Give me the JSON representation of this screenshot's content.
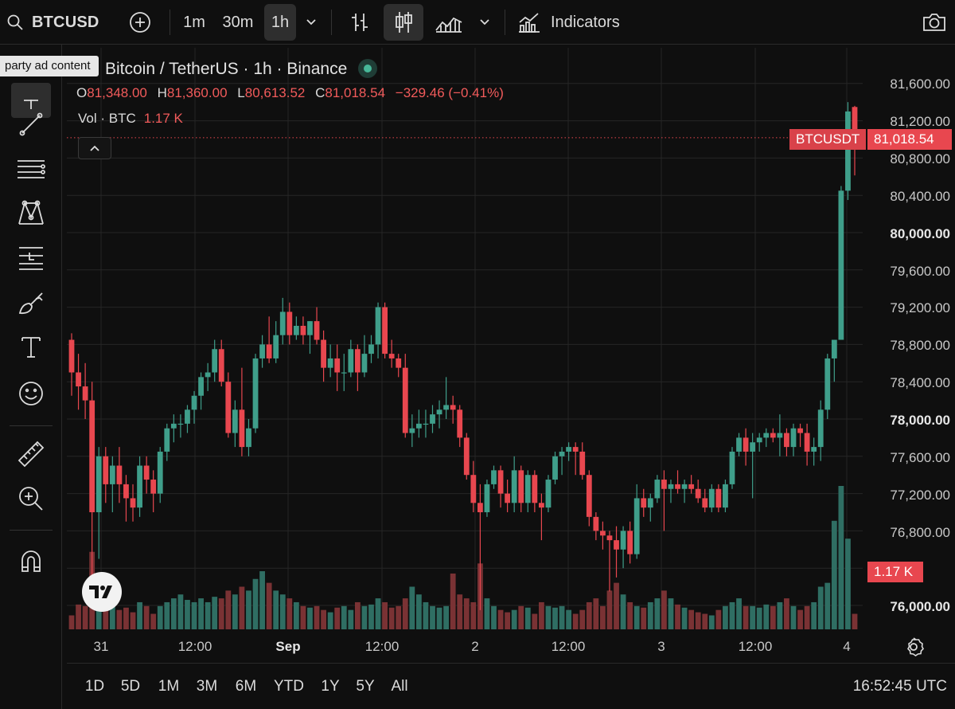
{
  "toolbar": {
    "symbol": "BTCUSD",
    "timeframes": [
      "1m",
      "30m",
      "1h"
    ],
    "active_timeframe": "1h",
    "indicators_label": "Indicators"
  },
  "tooltip": "party ad content",
  "legend": {
    "title": "Bitcoin / TetherUS · 1h · Binance",
    "ohlc": [
      {
        "key": "O",
        "value": "81,348.00"
      },
      {
        "key": "H",
        "value": "81,360.00"
      },
      {
        "key": "L",
        "value": "80,613.52"
      },
      {
        "key": "C",
        "value": "81,018.54"
      }
    ],
    "change": "−329.46 (−0.41%)",
    "vol_label": "Vol · BTC",
    "vol_value": "1.17 K"
  },
  "price_scale": {
    "labels": [
      "81,600.00",
      "81,200.00",
      "80,800.00",
      "80,400.00",
      "80,000.00",
      "79,600.00",
      "79,200.00",
      "78,800.00",
      "78,400.00",
      "78,000.00",
      "77,600.00",
      "77,200.00",
      "76,800.00",
      "76,000.00"
    ],
    "bold": [
      "80,000.00",
      "78,000.00",
      "76,000.00"
    ],
    "last_price_symbol": "BTCUSDT",
    "last_price": "81,018.54",
    "volume_tag": "1.17 K"
  },
  "time_scale": {
    "labels": [
      "31",
      "12:00",
      "Sep",
      "12:00",
      "2",
      "12:00",
      "3",
      "12:00",
      "4"
    ],
    "bold": [
      "Sep"
    ]
  },
  "bottombar": {
    "ranges": [
      "1D",
      "5D",
      "1M",
      "3M",
      "6M",
      "YTD",
      "1Y",
      "5Y",
      "All"
    ],
    "clock": "16:52:45 UTC"
  },
  "colors": {
    "up": "#3f9e8a",
    "down": "#e8474f",
    "volume_up": "#2f6e63",
    "volume_down": "#7a3234"
  },
  "chart_data": {
    "type": "candlestick",
    "interval": "1h",
    "price_range": [
      75900,
      81700
    ],
    "candles": [
      [
        78850,
        78920,
        78250,
        78500
      ],
      [
        78500,
        78700,
        78100,
        78350
      ],
      [
        78350,
        78600,
        78000,
        78200
      ],
      [
        78200,
        78400,
        76300,
        77000
      ],
      [
        77000,
        77700,
        76500,
        77600
      ],
      [
        77600,
        77700,
        77100,
        77300
      ],
      [
        77300,
        77600,
        77000,
        77500
      ],
      [
        77500,
        77700,
        77100,
        77300
      ],
      [
        77300,
        77400,
        76900,
        77150
      ],
      [
        77150,
        77300,
        76900,
        77050
      ],
      [
        77050,
        77600,
        76950,
        77500
      ],
      [
        77500,
        77600,
        77200,
        77350
      ],
      [
        77350,
        77450,
        77000,
        77200
      ],
      [
        77200,
        77700,
        77100,
        77650
      ],
      [
        77650,
        77950,
        77550,
        77900
      ],
      [
        77900,
        78050,
        77750,
        77950
      ],
      [
        77950,
        78050,
        77800,
        77950
      ],
      [
        77950,
        78150,
        77850,
        78100
      ],
      [
        78100,
        78300,
        77950,
        78250
      ],
      [
        78250,
        78500,
        78100,
        78450
      ],
      [
        78450,
        78600,
        78300,
        78500
      ],
      [
        78500,
        78850,
        78400,
        78750
      ],
      [
        78750,
        78850,
        78350,
        78400
      ],
      [
        78400,
        78500,
        77800,
        77850
      ],
      [
        77850,
        78200,
        77700,
        78100
      ],
      [
        78100,
        78550,
        77600,
        77700
      ],
      [
        77700,
        78000,
        77600,
        77900
      ],
      [
        77900,
        78700,
        77850,
        78650
      ],
      [
        78650,
        78900,
        78550,
        78800
      ],
      [
        78800,
        79100,
        78600,
        78650
      ],
      [
        78650,
        79050,
        78600,
        78900
      ],
      [
        78900,
        79300,
        78800,
        79150
      ],
      [
        79150,
        79250,
        78800,
        78900
      ],
      [
        78900,
        79100,
        78850,
        79000
      ],
      [
        79000,
        79100,
        78800,
        78900
      ],
      [
        78900,
        79050,
        78700,
        79050
      ],
      [
        79050,
        79200,
        78800,
        78850
      ],
      [
        78850,
        78950,
        78400,
        78550
      ],
      [
        78550,
        78800,
        78450,
        78650
      ],
      [
        78650,
        78800,
        78300,
        78500
      ],
      [
        78500,
        78700,
        78300,
        78500
      ],
      [
        78500,
        78850,
        78450,
        78750
      ],
      [
        78750,
        78800,
        78300,
        78500
      ],
      [
        78500,
        78900,
        78450,
        78700
      ],
      [
        78700,
        78900,
        78600,
        78800
      ],
      [
        78800,
        79250,
        78650,
        79200
      ],
      [
        79200,
        79250,
        78650,
        78700
      ],
      [
        78700,
        78850,
        78550,
        78650
      ],
      [
        78650,
        78700,
        78450,
        78550
      ],
      [
        78550,
        78700,
        77800,
        77850
      ],
      [
        77850,
        78050,
        77700,
        77900
      ],
      [
        77900,
        78100,
        77800,
        77950
      ],
      [
        77950,
        78100,
        77800,
        77950
      ],
      [
        77950,
        78150,
        77850,
        78050
      ],
      [
        78050,
        78200,
        77900,
        78100
      ],
      [
        78100,
        78450,
        78000,
        78150
      ],
      [
        78150,
        78250,
        77950,
        78100
      ],
      [
        78100,
        78150,
        77700,
        77800
      ],
      [
        77800,
        77850,
        77350,
        77400
      ],
      [
        77400,
        77550,
        77000,
        77100
      ],
      [
        77100,
        77300,
        75950,
        77000
      ],
      [
        77000,
        77350,
        76950,
        77300
      ],
      [
        77300,
        77500,
        77250,
        77450
      ],
      [
        77450,
        77500,
        77050,
        77200
      ],
      [
        77200,
        77350,
        77000,
        77100
      ],
      [
        77100,
        77600,
        77000,
        77450
      ],
      [
        77450,
        77500,
        77000,
        77100
      ],
      [
        77100,
        77450,
        77000,
        77400
      ],
      [
        77400,
        77450,
        77000,
        77100
      ],
      [
        77100,
        77200,
        76700,
        77050
      ],
      [
        77050,
        77400,
        77000,
        77350
      ],
      [
        77350,
        77650,
        77300,
        77600
      ],
      [
        77600,
        77700,
        77400,
        77650
      ],
      [
        77650,
        77750,
        77550,
        77700
      ],
      [
        77700,
        77750,
        77400,
        77650
      ],
      [
        77650,
        77750,
        77350,
        77400
      ],
      [
        77400,
        77450,
        76850,
        76950
      ],
      [
        76950,
        77000,
        76700,
        76800
      ],
      [
        76800,
        76900,
        76600,
        76750
      ],
      [
        76750,
        76800,
        76150,
        76700
      ],
      [
        76700,
        76850,
        76300,
        76600
      ],
      [
        76600,
        76850,
        76400,
        76800
      ],
      [
        76800,
        76900,
        76450,
        76550
      ],
      [
        76550,
        77300,
        76500,
        77150
      ],
      [
        77150,
        77250,
        76950,
        77050
      ],
      [
        77050,
        77200,
        76900,
        77150
      ],
      [
        77150,
        77400,
        77100,
        77350
      ],
      [
        77350,
        77450,
        76800,
        77250
      ],
      [
        77250,
        77350,
        77100,
        77300
      ],
      [
        77300,
        77450,
        77200,
        77250
      ],
      [
        77250,
        77350,
        77100,
        77300
      ],
      [
        77300,
        77400,
        77200,
        77250
      ],
      [
        77250,
        77350,
        77100,
        77150
      ],
      [
        77150,
        77250,
        77000,
        77050
      ],
      [
        77050,
        77300,
        77000,
        77250
      ],
      [
        77250,
        77300,
        77000,
        77050
      ],
      [
        77050,
        77350,
        77000,
        77300
      ],
      [
        77300,
        77700,
        77250,
        77650
      ],
      [
        77650,
        77850,
        77600,
        77800
      ],
      [
        77800,
        77900,
        77500,
        77650
      ],
      [
        77650,
        77850,
        77150,
        77750
      ],
      [
        77750,
        77850,
        77650,
        77800
      ],
      [
        77800,
        77900,
        77700,
        77850
      ],
      [
        77850,
        77900,
        77750,
        77800
      ],
      [
        77800,
        78050,
        77600,
        77850
      ],
      [
        77850,
        77900,
        77600,
        77700
      ],
      [
        77700,
        77950,
        77600,
        77900
      ],
      [
        77900,
        77950,
        77700,
        77850
      ],
      [
        77850,
        77950,
        77500,
        77650
      ],
      [
        77650,
        77800,
        77500,
        77700
      ],
      [
        77700,
        78200,
        77550,
        78100
      ],
      [
        78100,
        78700,
        78000,
        78650
      ],
      [
        78650,
        78850,
        78400,
        78850
      ],
      [
        78850,
        80500,
        78850,
        80450
      ],
      [
        80450,
        81400,
        80350,
        81300
      ],
      [
        81348,
        81360,
        80613.52,
        81018.54
      ]
    ],
    "volume_k": [
      0.18,
      0.32,
      0.3,
      1.0,
      0.4,
      0.35,
      0.3,
      0.25,
      0.28,
      0.22,
      0.35,
      0.3,
      0.2,
      0.3,
      0.35,
      0.4,
      0.45,
      0.38,
      0.35,
      0.4,
      0.35,
      0.42,
      0.4,
      0.5,
      0.45,
      0.55,
      0.5,
      0.65,
      0.75,
      0.6,
      0.5,
      0.45,
      0.4,
      0.35,
      0.3,
      0.28,
      0.3,
      0.25,
      0.22,
      0.28,
      0.3,
      0.25,
      0.35,
      0.3,
      0.32,
      0.4,
      0.35,
      0.28,
      0.3,
      0.4,
      0.55,
      0.45,
      0.35,
      0.3,
      0.28,
      0.3,
      0.72,
      0.45,
      0.4,
      0.35,
      0.85,
      0.4,
      0.3,
      0.25,
      0.22,
      0.25,
      0.3,
      0.28,
      0.2,
      0.35,
      0.3,
      0.28,
      0.3,
      0.25,
      0.2,
      0.25,
      0.35,
      0.4,
      0.3,
      0.5,
      0.6,
      0.45,
      0.35,
      0.3,
      0.28,
      0.35,
      0.4,
      0.5,
      0.4,
      0.32,
      0.28,
      0.25,
      0.22,
      0.2,
      0.18,
      0.25,
      0.3,
      0.35,
      0.4,
      0.3,
      0.3,
      0.28,
      0.32,
      0.3,
      0.35,
      0.4,
      0.3,
      0.25,
      0.3,
      0.35,
      0.55,
      0.6,
      1.4,
      1.85,
      1.17
    ]
  }
}
